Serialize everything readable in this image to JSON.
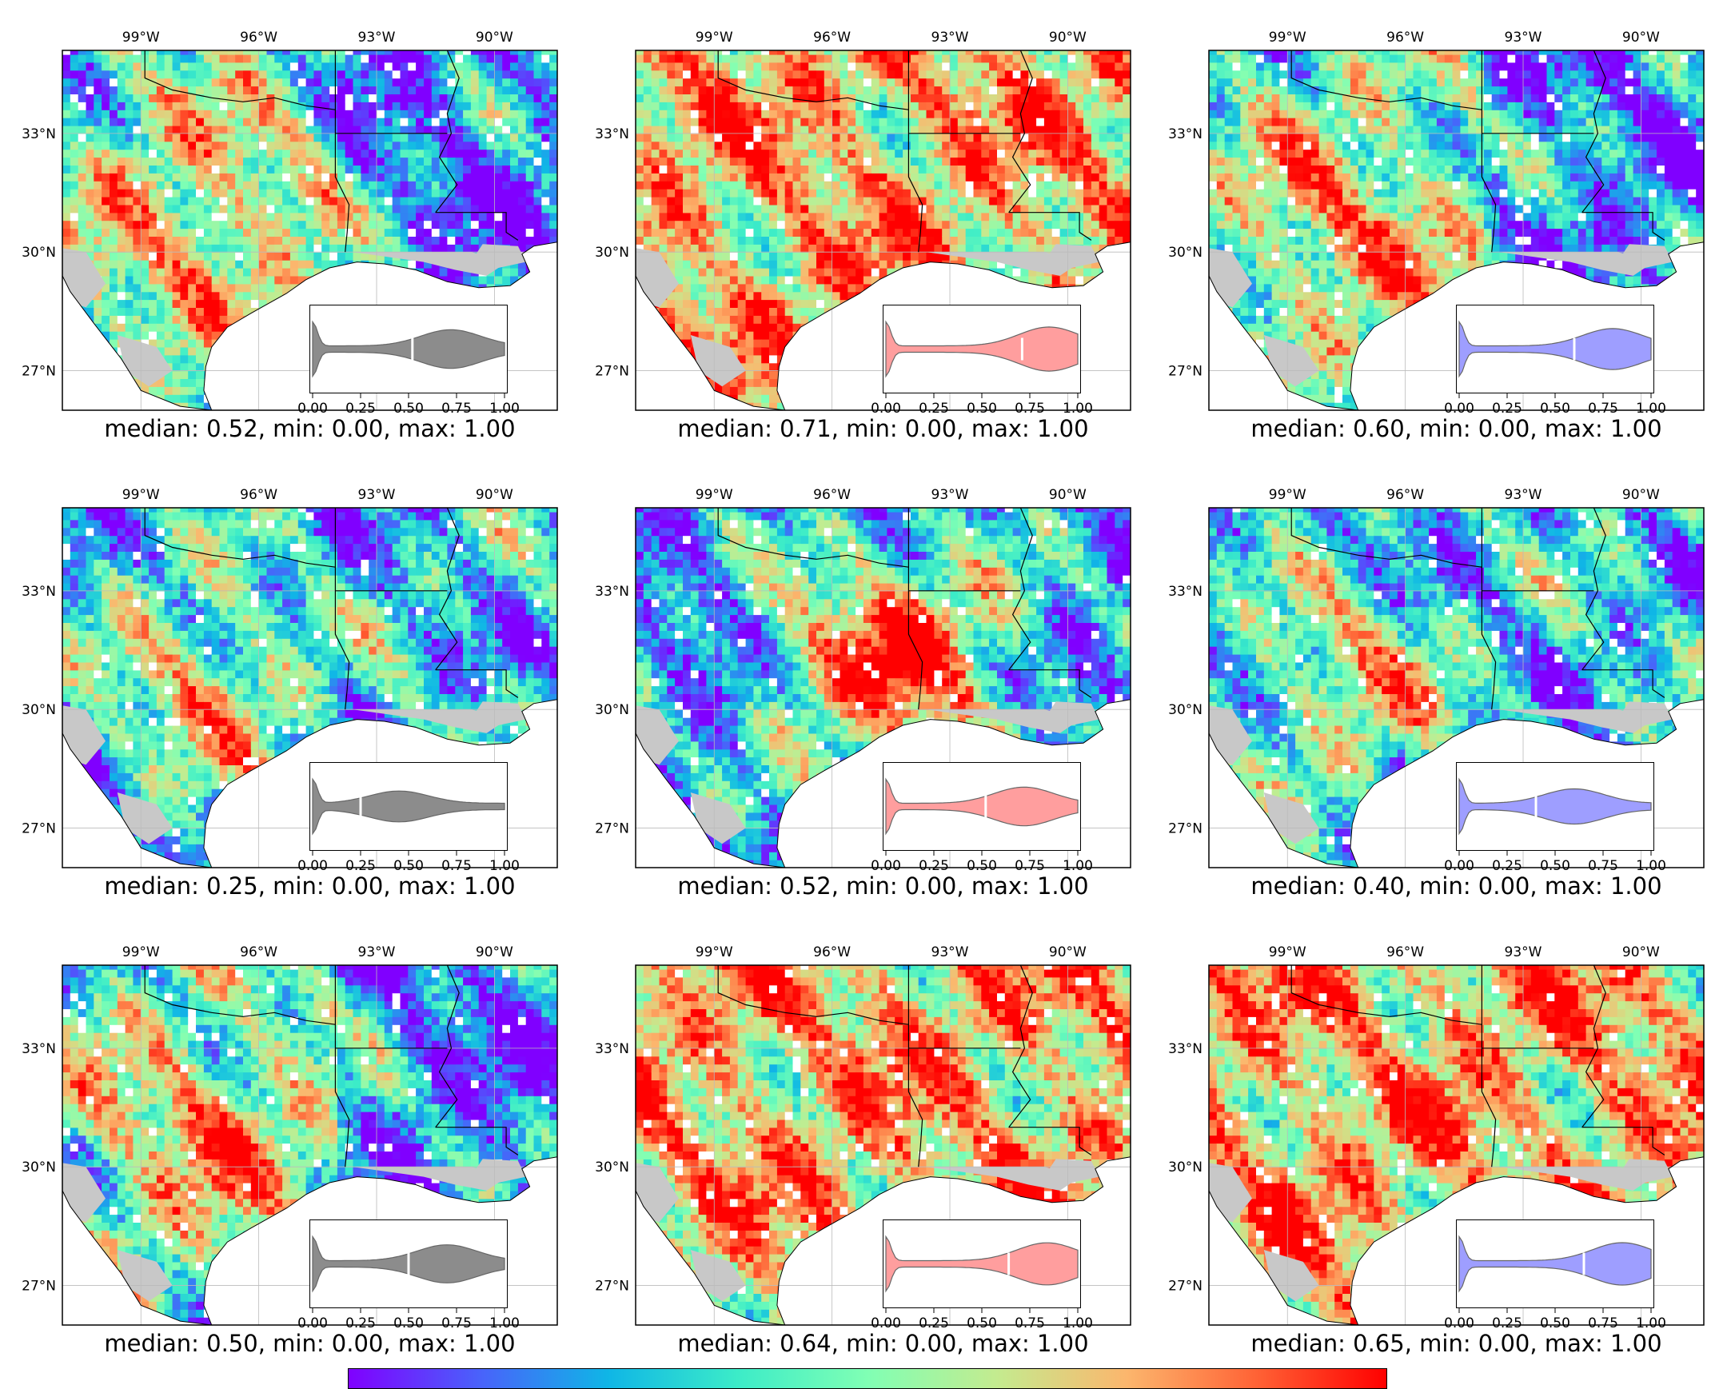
{
  "map_axes": {
    "lon_ticks": [
      "99°W",
      "96°W",
      "93°W",
      "90°W"
    ],
    "lat_ticks": [
      "33°N",
      "30°N",
      "27°N"
    ]
  },
  "inset_axis": {
    "ticks": [
      "0.00",
      "0.25",
      "0.50",
      "0.75",
      "1.00"
    ],
    "range": [
      0,
      1
    ]
  },
  "colors": {
    "land_nodata": "#c8c8c8",
    "gray_violin": "#8c8c8c",
    "red_violin": "#ff9e9e",
    "blue_violin": "#9e9eff",
    "colormap": "rainbow"
  },
  "panels": [
    {
      "caption": "median: 0.52, min: 0.00, max: 1.00",
      "median": 0.52,
      "min": 0.0,
      "max": 1.0,
      "violin_color": "gray",
      "field": "mixed"
    },
    {
      "caption": "median: 0.71, min: 0.00, max: 1.00",
      "median": 0.71,
      "min": 0.0,
      "max": 1.0,
      "violin_color": "red",
      "field": "high"
    },
    {
      "caption": "median: 0.60, min: 0.00, max: 1.00",
      "median": 0.6,
      "min": 0.0,
      "max": 1.0,
      "violin_color": "blue",
      "field": "mixed"
    },
    {
      "caption": "median: 0.25, min: 0.00, max: 1.00",
      "median": 0.25,
      "min": 0.0,
      "max": 1.0,
      "violin_color": "gray",
      "field": "low"
    },
    {
      "caption": "median: 0.52, min: 0.00, max: 1.00",
      "median": 0.52,
      "min": 0.0,
      "max": 1.0,
      "violin_color": "red",
      "field": "central-red"
    },
    {
      "caption": "median: 0.40, min: 0.00, max: 1.00",
      "median": 0.4,
      "min": 0.0,
      "max": 1.0,
      "violin_color": "blue",
      "field": "low"
    },
    {
      "caption": "median: 0.50, min: 0.00, max: 1.00",
      "median": 0.5,
      "min": 0.0,
      "max": 1.0,
      "violin_color": "gray",
      "field": "mixed"
    },
    {
      "caption": "median: 0.64, min: 0.00, max: 1.00",
      "median": 0.64,
      "min": 0.0,
      "max": 1.0,
      "violin_color": "red",
      "field": "high"
    },
    {
      "caption": "median: 0.65, min: 0.00, max: 1.00",
      "median": 0.65,
      "min": 0.0,
      "max": 1.0,
      "violin_color": "blue",
      "field": "high"
    }
  ],
  "colorbar": {
    "colormap": "rainbow",
    "range": [
      0,
      1
    ]
  }
}
